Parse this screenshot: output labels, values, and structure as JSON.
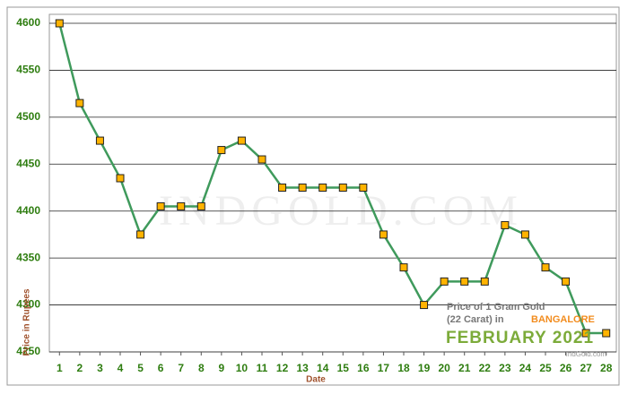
{
  "chart_data": {
    "type": "line",
    "x": [
      1,
      2,
      3,
      4,
      5,
      6,
      7,
      8,
      9,
      10,
      11,
      12,
      13,
      14,
      15,
      16,
      17,
      18,
      19,
      20,
      21,
      22,
      23,
      24,
      25,
      26,
      27,
      28
    ],
    "series": [
      {
        "name": "Price of 1 Gram Gold",
        "color": "#3f9a5c",
        "values": [
          4600,
          4515,
          4475,
          4435,
          4375,
          4405,
          4405,
          4405,
          4465,
          4475,
          4455,
          4425,
          4425,
          4425,
          4425,
          4425,
          4375,
          4340,
          4300,
          4325,
          4325,
          4325,
          4385,
          4375,
          4340,
          4325,
          4270,
          4270
        ]
      }
    ],
    "marker_color": "#ffb300",
    "xlim": [
      0.5,
      28.5
    ],
    "xticks": [
      1,
      2,
      3,
      4,
      5,
      6,
      7,
      8,
      9,
      10,
      11,
      12,
      13,
      14,
      15,
      16,
      17,
      18,
      19,
      20,
      21,
      22,
      23,
      24,
      25,
      26,
      27,
      28
    ],
    "ylim": [
      4250,
      4600
    ],
    "yticks": [
      4250,
      4300,
      4350,
      4400,
      4450,
      4500,
      4550,
      4600
    ],
    "grid": true,
    "xlabel": "Date",
    "ylabel": "Price in Rupees",
    "watermark": "INDGOLD.COM",
    "annotation": {
      "line1": "Price of 1 Gram Gold",
      "line2": "(22 Carat) in",
      "city": "BANGALORE",
      "month": "FEBRUARY 2021",
      "source": "IndGold.com"
    }
  }
}
